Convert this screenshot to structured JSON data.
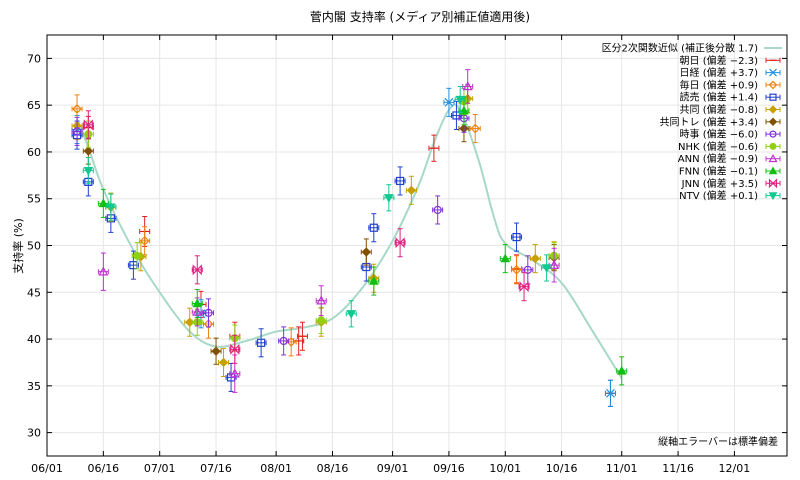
{
  "chart_data": {
    "type": "scatter",
    "title": "菅内閣 支持率 (メディア別補正値適用後)",
    "ylabel": "支持率 (%)",
    "xlabel": "",
    "x_ticks": [
      "06/01",
      "06/16",
      "07/01",
      "07/16",
      "08/01",
      "08/16",
      "09/01",
      "09/16",
      "10/01",
      "10/16",
      "11/01",
      "11/16",
      "12/01"
    ],
    "x_range": [
      "06/01",
      "12/15"
    ],
    "y_ticks": [
      30,
      35,
      40,
      45,
      50,
      55,
      60,
      65,
      70
    ],
    "ylim": [
      27.5,
      72.5
    ],
    "grid": true,
    "legend_position": "top-right",
    "note": "縦軸エラーバーは標準偏差",
    "fit_line": {
      "name": "区分2次関数近似 (補正後分散 1.7)",
      "color": "#a8d8c8",
      "points": [
        [
          "06/09",
          63.5
        ],
        [
          "06/12",
          60.5
        ],
        [
          "06/16",
          56
        ],
        [
          "06/24",
          49.5
        ],
        [
          "07/01",
          45
        ],
        [
          "07/09",
          40.8
        ],
        [
          "07/16",
          39.2
        ],
        [
          "07/24",
          39.8
        ],
        [
          "08/01",
          40.8
        ],
        [
          "08/08",
          41.2
        ],
        [
          "08/16",
          42.2
        ],
        [
          "08/24",
          45.5
        ],
        [
          "09/01",
          50.5
        ],
        [
          "09/08",
          56.5
        ],
        [
          "09/12",
          61
        ],
        [
          "09/16",
          64.5
        ],
        [
          "09/19",
          64.5
        ],
        [
          "09/24",
          59
        ],
        [
          "09/28",
          53
        ],
        [
          "10/01",
          50.2
        ],
        [
          "10/08",
          48.5
        ],
        [
          "10/16",
          46
        ],
        [
          "10/24",
          41
        ],
        [
          "11/01",
          35.8
        ]
      ]
    },
    "series": [
      {
        "name": "朝日 (偏差 −2.3)",
        "color": "#e02020",
        "marker": "hbar",
        "points": [
          [
            "06/12",
            62.6,
            1.2
          ],
          [
            "06/27",
            51.5,
            1.6
          ],
          [
            "07/12",
            43.7,
            1.4
          ],
          [
            "07/21",
            40.3,
            1.5
          ],
          [
            "08/07",
            39.8,
            1.5
          ],
          [
            "08/08",
            40.3,
            1.5
          ],
          [
            "09/12",
            60.4,
            1.4
          ],
          [
            "10/04",
            47.5,
            1.5
          ],
          [
            "10/29",
            34.2,
            1.4
          ]
        ]
      },
      {
        "name": "日経 (偏差 +3.7)",
        "color": "#2090e0",
        "marker": "x",
        "points": [
          [
            "06/09",
            62.4,
            1.5
          ],
          [
            "07/12",
            42.7,
            1.5
          ],
          [
            "09/16",
            65.3,
            1.5
          ],
          [
            "10/29",
            34.2,
            1.4
          ]
        ]
      },
      {
        "name": "毎日 (偏差 +0.9)",
        "color": "#f08010",
        "marker": "diamond",
        "points": [
          [
            "06/09",
            64.6,
            1.5
          ],
          [
            "06/27",
            50.5,
            1.5
          ],
          [
            "07/14",
            41.6,
            1.5
          ],
          [
            "08/05",
            39.7,
            1.5
          ],
          [
            "09/23",
            62.5,
            1.5
          ],
          [
            "10/04",
            47.4,
            1.5
          ]
        ]
      },
      {
        "name": "読売 (偏差 +1.4)",
        "color": "#2040d0",
        "marker": "square",
        "points": [
          [
            "06/09",
            61.8,
            1.5
          ],
          [
            "06/12",
            56.8,
            1.5
          ],
          [
            "06/18",
            52.9,
            1.5
          ],
          [
            "06/24",
            47.9,
            1.5
          ],
          [
            "07/20",
            35.9,
            1.5
          ],
          [
            "07/28",
            39.6,
            1.5
          ],
          [
            "08/25",
            47.7,
            1.5
          ],
          [
            "08/27",
            51.9,
            1.5
          ],
          [
            "09/03",
            56.9,
            1.5
          ],
          [
            "09/18",
            63.9,
            1.5
          ],
          [
            "10/04",
            50.9,
            1.5
          ]
        ]
      },
      {
        "name": "共同 (偏差 −0.8)",
        "color": "#c8a000",
        "marker": "filled-diamond",
        "points": [
          [
            "06/09",
            62.8,
            1.5
          ],
          [
            "06/18",
            54.1,
            1.5
          ],
          [
            "06/26",
            48.8,
            1.5
          ],
          [
            "07/09",
            41.8,
            1.5
          ],
          [
            "07/18",
            37.5,
            1.5
          ],
          [
            "08/13",
            41.8,
            1.5
          ],
          [
            "08/27",
            46.5,
            1.5
          ],
          [
            "09/06",
            55.9,
            1.5
          ],
          [
            "09/21",
            65.7,
            1.5
          ],
          [
            "10/09",
            48.6,
            1.5
          ],
          [
            "10/14",
            48.9,
            1.5
          ]
        ]
      },
      {
        "name": "共同トレ (偏差 +3.4)",
        "color": "#805000",
        "marker": "filled-diamond",
        "points": [
          [
            "06/12",
            60.1,
            1.4
          ],
          [
            "07/16",
            38.7,
            1.4
          ],
          [
            "08/25",
            49.3,
            1.4
          ],
          [
            "09/20",
            62.5,
            1.4
          ],
          [
            "10/14",
            48.7,
            1.4
          ]
        ]
      },
      {
        "name": "時事 (偏差 −6.0)",
        "color": "#8030e0",
        "marker": "circle",
        "points": [
          [
            "06/09",
            62.2,
            1.5
          ],
          [
            "07/14",
            42.8,
            1.5
          ],
          [
            "08/03",
            39.8,
            1.5
          ],
          [
            "09/13",
            53.8,
            1.5
          ],
          [
            "09/20",
            63.6,
            1.5
          ],
          [
            "10/07",
            47.4,
            1.5
          ]
        ]
      },
      {
        "name": "NHK (偏差 −0.6)",
        "color": "#90d010",
        "marker": "filled-circle",
        "points": [
          [
            "06/12",
            61.9,
            1.4
          ],
          [
            "06/25",
            48.9,
            1.4
          ],
          [
            "07/11",
            41.8,
            1.4
          ],
          [
            "07/21",
            40.1,
            1.4
          ],
          [
            "08/13",
            42.0,
            1.4
          ],
          [
            "09/20",
            65.4,
            1.4
          ],
          [
            "10/14",
            48.9,
            1.4
          ]
        ]
      },
      {
        "name": "ANN (偏差 −0.9)",
        "color": "#c030d0",
        "marker": "triangle",
        "points": [
          [
            "06/16",
            47.2,
            2.0
          ],
          [
            "07/11",
            42.9,
            1.5
          ],
          [
            "07/21",
            36.3,
            2.0
          ],
          [
            "08/13",
            44.1,
            1.6
          ],
          [
            "09/21",
            67.0,
            1.8
          ],
          [
            "10/14",
            47.9,
            1.8
          ]
        ]
      },
      {
        "name": "FNN (偏差 −0.1)",
        "color": "#10c010",
        "marker": "filled-triangle",
        "points": [
          [
            "06/16",
            54.5,
            1.5
          ],
          [
            "07/11",
            43.8,
            1.5
          ],
          [
            "08/27",
            46.2,
            1.5
          ],
          [
            "09/20",
            64.4,
            1.5
          ],
          [
            "10/01",
            48.6,
            1.5
          ],
          [
            "11/01",
            36.6,
            1.5
          ]
        ]
      },
      {
        "name": "JNN (偏差 +3.5)",
        "color": "#e0207f",
        "marker": "bowtie",
        "points": [
          [
            "06/12",
            62.9,
            1.5
          ],
          [
            "07/11",
            47.4,
            1.5
          ],
          [
            "07/21",
            38.9,
            1.5
          ],
          [
            "09/03",
            50.3,
            1.5
          ],
          [
            "10/06",
            45.6,
            1.5
          ]
        ]
      },
      {
        "name": "NTV (偏差 +0.1)",
        "color": "#10c890",
        "marker": "filled-triangle-down",
        "points": [
          [
            "06/12",
            58.0,
            1.4
          ],
          [
            "06/18",
            54.1,
            1.4
          ],
          [
            "08/21",
            42.7,
            1.4
          ],
          [
            "08/31",
            55.1,
            1.4
          ],
          [
            "09/19",
            65.6,
            1.4
          ],
          [
            "10/12",
            47.6,
            1.4
          ]
        ]
      }
    ]
  }
}
